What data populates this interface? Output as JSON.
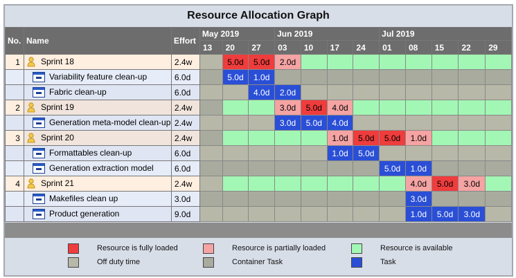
{
  "title": "Resource Allocation Graph",
  "headers": {
    "no": "No.",
    "name": "Name",
    "effort": "Effort"
  },
  "months": [
    "May 2019",
    "Jun 2019",
    "Jul 2019"
  ],
  "weeks": [
    "13",
    "20",
    "27",
    "03",
    "10",
    "17",
    "24",
    "01",
    "08",
    "15",
    "22",
    "29"
  ],
  "colors": {
    "full": "#ef3c3c",
    "partial": "#f5a3a3",
    "available": "#a2f7b4",
    "off": "#b8b8a8",
    "container": "#a8ab9e",
    "task": "#2a4fd6"
  },
  "rows": [
    {
      "no": "1",
      "name": "Sprint 18",
      "effort": "2.4w",
      "kind": "group",
      "cells": [
        [
          "off",
          ""
        ],
        [
          "full",
          "5.0d"
        ],
        [
          "full",
          "5.0d"
        ],
        [
          "partial",
          "2.0d"
        ],
        [
          "available",
          ""
        ],
        [
          "available",
          ""
        ],
        [
          "available",
          ""
        ],
        [
          "available",
          ""
        ],
        [
          "available",
          ""
        ],
        [
          "available",
          ""
        ],
        [
          "available",
          ""
        ],
        [
          "available",
          ""
        ]
      ]
    },
    {
      "no": "",
      "name": "Variability feature clean-up",
      "effort": "6.0d",
      "kind": "task",
      "cells": [
        [
          "container",
          ""
        ],
        [
          "task",
          "5.0d"
        ],
        [
          "task",
          "1.0d"
        ],
        [
          "container",
          ""
        ],
        [
          "container",
          ""
        ],
        [
          "container",
          ""
        ],
        [
          "container",
          ""
        ],
        [
          "container",
          ""
        ],
        [
          "container",
          ""
        ],
        [
          "container",
          ""
        ],
        [
          "container",
          ""
        ],
        [
          "container",
          ""
        ]
      ]
    },
    {
      "no": "",
      "name": "Fabric clean-up",
      "effort": "6.0d",
      "kind": "task",
      "cells": [
        [
          "off",
          ""
        ],
        [
          "off",
          ""
        ],
        [
          "task",
          "4.0d"
        ],
        [
          "task",
          "2.0d"
        ],
        [
          "off",
          ""
        ],
        [
          "off",
          ""
        ],
        [
          "off",
          ""
        ],
        [
          "off",
          ""
        ],
        [
          "off",
          ""
        ],
        [
          "off",
          ""
        ],
        [
          "off",
          ""
        ],
        [
          "off",
          ""
        ]
      ]
    },
    {
      "no": "2",
      "name": "Sprint 19",
      "effort": "2.4w",
      "kind": "group2",
      "cells": [
        [
          "container",
          ""
        ],
        [
          "available",
          ""
        ],
        [
          "available",
          ""
        ],
        [
          "partial",
          "3.0d"
        ],
        [
          "full",
          "5.0d"
        ],
        [
          "partial",
          "4.0d"
        ],
        [
          "available",
          ""
        ],
        [
          "available",
          ""
        ],
        [
          "available",
          ""
        ],
        [
          "available",
          ""
        ],
        [
          "available",
          ""
        ],
        [
          "available",
          ""
        ]
      ]
    },
    {
      "no": "",
      "name": "Generation meta-model clean-up",
      "effort": "2.4w",
      "kind": "task",
      "cells": [
        [
          "off",
          ""
        ],
        [
          "off",
          ""
        ],
        [
          "off",
          ""
        ],
        [
          "task",
          "3.0d"
        ],
        [
          "task",
          "5.0d"
        ],
        [
          "task",
          "4.0d"
        ],
        [
          "off",
          ""
        ],
        [
          "off",
          ""
        ],
        [
          "off",
          ""
        ],
        [
          "off",
          ""
        ],
        [
          "off",
          ""
        ],
        [
          "off",
          ""
        ]
      ]
    },
    {
      "no": "3",
      "name": "Sprint 20",
      "effort": "2.4w",
      "kind": "group2",
      "cells": [
        [
          "container",
          ""
        ],
        [
          "available",
          ""
        ],
        [
          "available",
          ""
        ],
        [
          "available",
          ""
        ],
        [
          "available",
          ""
        ],
        [
          "partial",
          "1.0d"
        ],
        [
          "full",
          "5.0d"
        ],
        [
          "full",
          "5.0d"
        ],
        [
          "partial",
          "1.0d"
        ],
        [
          "available",
          ""
        ],
        [
          "available",
          ""
        ],
        [
          "available",
          ""
        ]
      ]
    },
    {
      "no": "",
      "name": "Formattables clean-up",
      "effort": "6.0d",
      "kind": "task",
      "cells": [
        [
          "off",
          ""
        ],
        [
          "off",
          ""
        ],
        [
          "off",
          ""
        ],
        [
          "off",
          ""
        ],
        [
          "off",
          ""
        ],
        [
          "task",
          "1.0d"
        ],
        [
          "task",
          "5.0d"
        ],
        [
          "off",
          ""
        ],
        [
          "off",
          ""
        ],
        [
          "off",
          ""
        ],
        [
          "off",
          ""
        ],
        [
          "off",
          ""
        ]
      ]
    },
    {
      "no": "",
      "name": "Generation extraction model",
      "effort": "6.0d",
      "kind": "task",
      "cells": [
        [
          "container",
          ""
        ],
        [
          "container",
          ""
        ],
        [
          "container",
          ""
        ],
        [
          "container",
          ""
        ],
        [
          "container",
          ""
        ],
        [
          "container",
          ""
        ],
        [
          "container",
          ""
        ],
        [
          "task",
          "5.0d"
        ],
        [
          "task",
          "1.0d"
        ],
        [
          "container",
          ""
        ],
        [
          "container",
          ""
        ],
        [
          "container",
          ""
        ]
      ]
    },
    {
      "no": "4",
      "name": "Sprint 21",
      "effort": "2.4w",
      "kind": "group",
      "cells": [
        [
          "off",
          ""
        ],
        [
          "available",
          ""
        ],
        [
          "available",
          ""
        ],
        [
          "available",
          ""
        ],
        [
          "available",
          ""
        ],
        [
          "available",
          ""
        ],
        [
          "available",
          ""
        ],
        [
          "available",
          ""
        ],
        [
          "partial",
          "4.0d"
        ],
        [
          "full",
          "5.0d"
        ],
        [
          "partial",
          "3.0d"
        ],
        [
          "available",
          ""
        ]
      ]
    },
    {
      "no": "",
      "name": "Makefiles clean up",
      "effort": "3.0d",
      "kind": "task",
      "cells": [
        [
          "container",
          ""
        ],
        [
          "container",
          ""
        ],
        [
          "container",
          ""
        ],
        [
          "container",
          ""
        ],
        [
          "container",
          ""
        ],
        [
          "container",
          ""
        ],
        [
          "container",
          ""
        ],
        [
          "container",
          ""
        ],
        [
          "task",
          "3.0d"
        ],
        [
          "container",
          ""
        ],
        [
          "container",
          ""
        ],
        [
          "container",
          ""
        ]
      ]
    },
    {
      "no": "",
      "name": "Product generation",
      "effort": "9.0d",
      "kind": "task",
      "cells": [
        [
          "off",
          ""
        ],
        [
          "off",
          ""
        ],
        [
          "off",
          ""
        ],
        [
          "off",
          ""
        ],
        [
          "off",
          ""
        ],
        [
          "off",
          ""
        ],
        [
          "off",
          ""
        ],
        [
          "off",
          ""
        ],
        [
          "task",
          "1.0d"
        ],
        [
          "task",
          "5.0d"
        ],
        [
          "task",
          "3.0d"
        ],
        [
          "off",
          ""
        ]
      ]
    }
  ],
  "legend": [
    {
      "key": "full",
      "label": "Resource is fully loaded"
    },
    {
      "key": "partial",
      "label": "Resource is partially loaded"
    },
    {
      "key": "available",
      "label": "Resource is available"
    },
    {
      "key": "off",
      "label": "Off duty time"
    },
    {
      "key": "container",
      "label": "Container Task"
    },
    {
      "key": "task",
      "label": "Task"
    }
  ]
}
